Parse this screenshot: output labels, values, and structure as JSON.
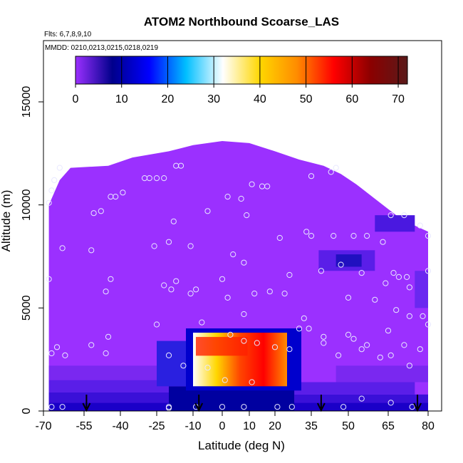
{
  "chart_data": {
    "type": "heatmap",
    "title": "ATOM2 Northbound Scoarse_LAS",
    "flights_note": "Flts: 6,7,8,9,10",
    "dates_note": "MMDD: 0210,0213,0215,0218,0219",
    "xlabel": "Latitude (deg N)",
    "ylabel": "Altitude (m)",
    "x_ticks": [
      "-70",
      "-55",
      "-40",
      "-25",
      "-10",
      "0",
      "10",
      "20",
      "35",
      "50",
      "65",
      "80"
    ],
    "y_ticks": [
      "0",
      "5000",
      "10000",
      "15000"
    ],
    "xlim": [
      -70,
      85
    ],
    "ylim": [
      0,
      17500
    ],
    "colorbar": {
      "ticks": [
        "0",
        "10",
        "20",
        "30",
        "40",
        "50",
        "60",
        "70"
      ],
      "range": [
        0,
        72
      ],
      "colors": [
        "#9b30ff",
        "#00008b",
        "#0000ff",
        "#00bfff",
        "#ffffff",
        "#ffd700",
        "#ff8c00",
        "#ff0000",
        "#8b0000",
        "#5a1a1a"
      ]
    },
    "hotspot": {
      "lat_range": [
        -10,
        25
      ],
      "alt_range": [
        1200,
        3800
      ],
      "max_value": 70
    },
    "flight_endpoints_lat": [
      -54,
      -8,
      39,
      76
    ],
    "sample_points": [
      [
        -68,
        10100
      ],
      [
        -67,
        10700
      ],
      [
        -66,
        11200
      ],
      [
        -64,
        11800
      ],
      [
        -68,
        6400
      ],
      [
        -63,
        7900
      ],
      [
        -52,
        7800
      ],
      [
        -67,
        2800
      ],
      [
        -65,
        3100
      ],
      [
        -62,
        2700
      ],
      [
        -52,
        3200
      ],
      [
        -46,
        2800
      ],
      [
        -45,
        3600
      ],
      [
        -46,
        5800
      ],
      [
        -44,
        6400
      ],
      [
        -51,
        9600
      ],
      [
        -48,
        9700
      ],
      [
        -44,
        10400
      ],
      [
        -42,
        10400
      ],
      [
        -39,
        10600
      ],
      [
        -30,
        11300
      ],
      [
        -28,
        11300
      ],
      [
        -25,
        11300
      ],
      [
        -22,
        11300
      ],
      [
        -17,
        11900
      ],
      [
        -15,
        11900
      ],
      [
        -26,
        8000
      ],
      [
        -20,
        8200
      ],
      [
        -18,
        9200
      ],
      [
        -22,
        6100
      ],
      [
        -19,
        5900
      ],
      [
        -11,
        8000
      ],
      [
        -9,
        5900
      ],
      [
        -11,
        5700
      ],
      [
        -5,
        9700
      ],
      [
        2,
        10400
      ],
      [
        7,
        10300
      ],
      [
        11,
        11000
      ],
      [
        15,
        10900
      ],
      [
        17,
        10900
      ],
      [
        0,
        6400
      ],
      [
        4,
        7600
      ],
      [
        8,
        7200
      ],
      [
        9,
        9500
      ],
      [
        -25,
        4200
      ],
      [
        -17,
        6300
      ],
      [
        2,
        5500
      ],
      [
        12,
        5700
      ],
      [
        -7,
        4300
      ],
      [
        3,
        3700
      ],
      [
        8,
        4700
      ],
      [
        8,
        3400
      ],
      [
        13,
        3300
      ],
      [
        20,
        3100
      ],
      [
        26,
        3000
      ],
      [
        -20,
        2700
      ],
      [
        -14,
        2200
      ],
      [
        -5,
        2100
      ],
      [
        1,
        1500
      ],
      [
        11,
        1400
      ],
      [
        18,
        5800
      ],
      [
        24,
        5700
      ],
      [
        26,
        6600
      ],
      [
        30,
        4000
      ],
      [
        32,
        4500
      ],
      [
        34,
        4000
      ],
      [
        22,
        8400
      ],
      [
        33,
        8700
      ],
      [
        35,
        8500
      ],
      [
        35,
        11400
      ],
      [
        43,
        11600
      ],
      [
        45,
        11800
      ],
      [
        44,
        8500
      ],
      [
        52,
        8500
      ],
      [
        57,
        8500
      ],
      [
        63,
        8200
      ],
      [
        39,
        6800
      ],
      [
        47,
        7100
      ],
      [
        55,
        6700
      ],
      [
        67,
        6700
      ],
      [
        69,
        6500
      ],
      [
        72,
        6500
      ],
      [
        80,
        6800
      ],
      [
        50,
        5500
      ],
      [
        60,
        5400
      ],
      [
        64,
        6200
      ],
      [
        73,
        6000
      ],
      [
        68,
        4900
      ],
      [
        73,
        4600
      ],
      [
        78,
        4600
      ],
      [
        80,
        4200
      ],
      [
        50,
        3700
      ],
      [
        52,
        3500
      ],
      [
        55,
        3000
      ],
      [
        57,
        3200
      ],
      [
        62,
        2600
      ],
      [
        66,
        2700
      ],
      [
        71,
        3200
      ],
      [
        73,
        2200
      ],
      [
        40,
        3300
      ],
      [
        40,
        3600
      ],
      [
        46,
        2700
      ],
      [
        65,
        3900
      ],
      [
        77,
        3000
      ],
      [
        66,
        9500
      ],
      [
        71,
        9500
      ],
      [
        77,
        9000
      ],
      [
        80,
        8500
      ],
      [
        -67,
        200
      ],
      [
        -63,
        200
      ],
      [
        -20,
        200
      ],
      [
        -20,
        150
      ],
      [
        0,
        200
      ],
      [
        8,
        200
      ],
      [
        -9,
        200
      ],
      [
        21,
        200
      ],
      [
        27,
        200
      ],
      [
        48,
        200
      ],
      [
        55,
        600
      ],
      [
        66,
        400
      ],
      [
        74,
        200
      ]
    ]
  }
}
